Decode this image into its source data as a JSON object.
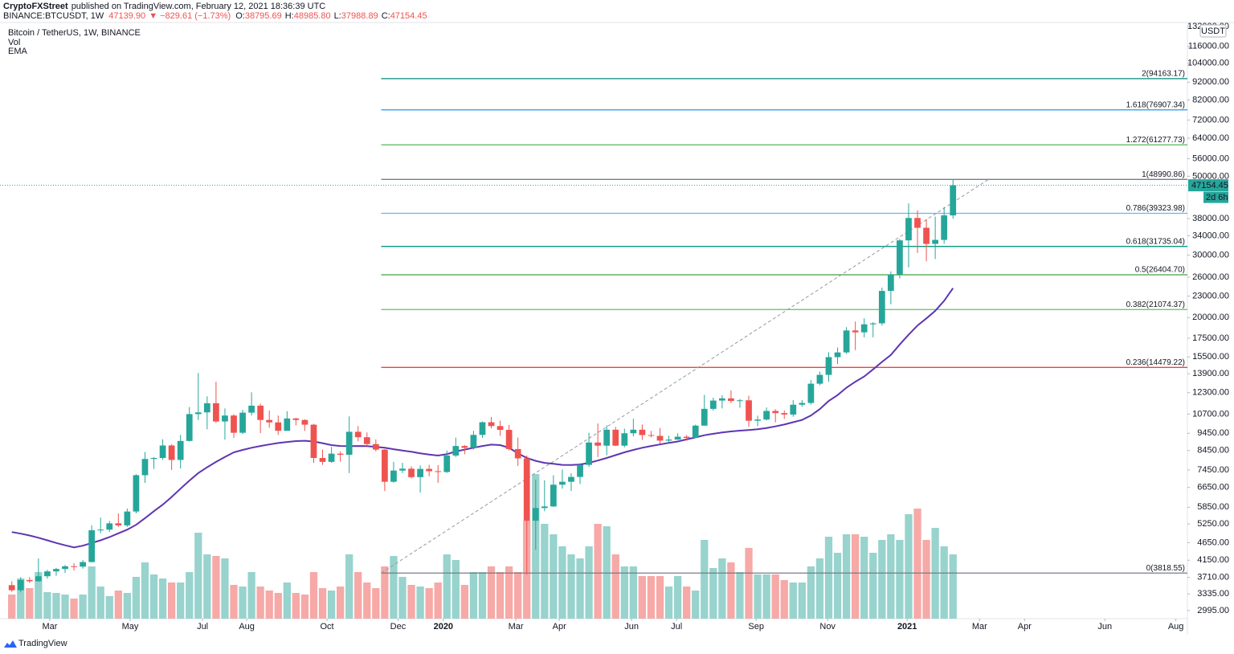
{
  "header": {
    "author": "CryptoFXStreet",
    "published": "published on TradingView.com, February 12, 2021 18:36:39 UTC",
    "symbol": "BINANCE:BTCUSDT, 1W",
    "last": "47139.90",
    "change": "▼ −829.61 (−1.73%)",
    "ohlc": [
      {
        "key": "O:",
        "value": "38795.69"
      },
      {
        "key": "H:",
        "value": "48985.80"
      },
      {
        "key": "L:",
        "value": "37988.89"
      },
      {
        "key": "C:",
        "value": "47154.45"
      }
    ]
  },
  "chart_data": {
    "type": "candlestick",
    "title": "Bitcoin / TetherUS, 1W, BINANCE",
    "indicators": [
      "Vol",
      "EMA"
    ],
    "currency": "USDT",
    "countdown": "2d 6h",
    "log_scale": true,
    "grid": false,
    "up_color": "#26a69a",
    "down_color": "#ef5350",
    "volume_up_color": "#98d3cd",
    "volume_down_color": "#f6a9a7",
    "ema_color": "#5e35b1",
    "categories": [
      null,
      null,
      null,
      null,
      null,
      null,
      null,
      null,
      null,
      null,
      null,
      null,
      null,
      null,
      null,
      null,
      null,
      null,
      null,
      null,
      null,
      null,
      null,
      null,
      null,
      null,
      null,
      null,
      null,
      null,
      null,
      null,
      null,
      null,
      null,
      null,
      null,
      null,
      null,
      null,
      null,
      null,
      null,
      null,
      null,
      null,
      null,
      null,
      null,
      null,
      null,
      null,
      null,
      null,
      null,
      null,
      null,
      null,
      null,
      null,
      null,
      null,
      null,
      null,
      null,
      null,
      null,
      null,
      null,
      null,
      null,
      null,
      null,
      null,
      null,
      null,
      null,
      null,
      null,
      null,
      null,
      null,
      null,
      null,
      null,
      null,
      null,
      null,
      null,
      null,
      null,
      null,
      null,
      null,
      null,
      null,
      null,
      null,
      null,
      null,
      null,
      null,
      null,
      null,
      null,
      null,
      null
    ],
    "open": [
      3530,
      3415,
      3650,
      3620,
      3740,
      3860,
      3920,
      3990,
      3980,
      4100,
      5040,
      5060,
      5270,
      5200,
      5690,
      7200,
      8000,
      8050,
      8730,
      7950,
      8990,
      10700,
      10820,
      11480,
      10200,
      10600,
      9480,
      10800,
      11300,
      10300,
      10140,
      9600,
      10400,
      10300,
      9990,
      8050,
      7850,
      8280,
      8220,
      9540,
      9210,
      8810,
      8500,
      6900,
      7420,
      7510,
      7110,
      7500,
      7390,
      7350,
      8180,
      8700,
      8600,
      9350,
      10150,
      9900,
      9660,
      8530,
      8030,
      5360,
      5820,
      5880,
      6770,
      6900,
      7120,
      7700,
      8900,
      8720,
      9670,
      8720,
      9450,
      9670,
      9340,
      9290,
      9010,
      9070,
      9240,
      9170,
      9930,
      11070,
      11680,
      11850,
      11650,
      11700,
      10250,
      10330,
      10920,
      10770,
      10670,
      11370,
      11500,
      13030,
      13800,
      15480,
      15960,
      18400,
      18180,
      19150,
      19270,
      23780,
      26450,
      33000,
      38150,
      35800,
      32250,
      33100,
      38795.69
    ],
    "high": [
      3620,
      3720,
      3720,
      4200,
      3900,
      3950,
      4020,
      4070,
      4150,
      5200,
      5470,
      5350,
      5620,
      5800,
      7250,
      8370,
      8100,
      9090,
      8800,
      9350,
      11200,
      13970,
      12000,
      13200,
      11100,
      10700,
      11000,
      12320,
      11450,
      10950,
      10600,
      10900,
      10450,
      10350,
      10050,
      8500,
      8650,
      8400,
      10540,
      9900,
      9500,
      9080,
      8530,
      7850,
      7800,
      7630,
      7680,
      7700,
      7690,
      8450,
      9190,
      8760,
      9600,
      10200,
      10500,
      10250,
      9970,
      9190,
      8180,
      7000,
      6970,
      7200,
      7470,
      7290,
      7780,
      9480,
      10070,
      9950,
      9850,
      9740,
      10380,
      10000,
      9590,
      9780,
      9300,
      9450,
      9340,
      9990,
      12120,
      11900,
      12100,
      12480,
      11800,
      12050,
      10590,
      11170,
      11050,
      10950,
      11720,
      11720,
      13350,
      14100,
      15970,
      16480,
      18800,
      19500,
      19900,
      19420,
      24300,
      27000,
      33300,
      41950,
      40100,
      37850,
      38500,
      40950,
      48985.8
    ],
    "low": [
      3380,
      3370,
      3580,
      3610,
      3680,
      3750,
      3820,
      3880,
      3930,
      4090,
      4950,
      4980,
      5150,
      5150,
      5620,
      6850,
      7500,
      7950,
      7450,
      7520,
      8960,
      10300,
      9700,
      10100,
      9070,
      9170,
      9400,
      10600,
      9460,
      9800,
      9350,
      9600,
      9950,
      9600,
      7800,
      7700,
      7800,
      7860,
      7300,
      8970,
      8700,
      8400,
      6500,
      6860,
      7300,
      7050,
      6430,
      7150,
      6850,
      7310,
      8100,
      8250,
      8500,
      9170,
      9750,
      9300,
      8450,
      7650,
      3780,
      4440,
      5700,
      5860,
      6600,
      6500,
      6800,
      7600,
      8100,
      8200,
      8700,
      8630,
      9260,
      9050,
      9200,
      8830,
      8890,
      9050,
      9000,
      9150,
      9920,
      10950,
      11100,
      11500,
      11150,
      9850,
      9900,
      10260,
      10140,
      10370,
      10520,
      11220,
      11380,
      12900,
      13200,
      14800,
      15800,
      16200,
      17600,
      17600,
      19000,
      21800,
      25800,
      27700,
      30400,
      28800,
      29250,
      32300,
      37988.89
    ],
    "close": [
      3415,
      3650,
      3620,
      3740,
      3860,
      3920,
      3990,
      3980,
      4100,
      5040,
      5060,
      5270,
      5200,
      5690,
      7200,
      8000,
      8050,
      8730,
      7950,
      8990,
      10700,
      10820,
      11480,
      10200,
      10600,
      9480,
      10800,
      11300,
      10300,
      10140,
      9600,
      10400,
      10300,
      9990,
      8050,
      7850,
      8280,
      8220,
      9540,
      9210,
      8810,
      8500,
      6900,
      7420,
      7510,
      7110,
      7500,
      7390,
      7350,
      8180,
      8700,
      8600,
      9350,
      10150,
      9900,
      9660,
      8530,
      8030,
      5360,
      5820,
      5880,
      6770,
      6900,
      7120,
      7700,
      8900,
      8720,
      9670,
      8720,
      9450,
      9670,
      9340,
      9290,
      9010,
      9070,
      9240,
      9170,
      9930,
      11070,
      11680,
      11850,
      11650,
      11700,
      10250,
      10330,
      10920,
      10770,
      10670,
      11370,
      11500,
      13030,
      13800,
      15480,
      15960,
      18400,
      18180,
      19150,
      19270,
      23780,
      26450,
      33000,
      38150,
      35800,
      32250,
      33100,
      38800,
      47154.45
    ],
    "volume": [
      30,
      50,
      38,
      58,
      33,
      32,
      30,
      25,
      30,
      65,
      40,
      28,
      35,
      32,
      52,
      70,
      55,
      50,
      45,
      45,
      58,
      107,
      80,
      78,
      75,
      42,
      40,
      58,
      40,
      35,
      32,
      45,
      32,
      30,
      58,
      38,
      35,
      40,
      80,
      58,
      45,
      38,
      65,
      78,
      52,
      42,
      40,
      38,
      45,
      80,
      73,
      42,
      58,
      58,
      65,
      58,
      65,
      58,
      122,
      180,
      118,
      105,
      90,
      80,
      75,
      90,
      118,
      115,
      80,
      65,
      65,
      53,
      53,
      53,
      40,
      53,
      40,
      35,
      98,
      63,
      75,
      70,
      58,
      88,
      55,
      55,
      55,
      48,
      45,
      45,
      65,
      75,
      102,
      82,
      105,
      105,
      102,
      82,
      98,
      105,
      98,
      130,
      137,
      98,
      113,
      90,
      80
    ],
    "ema": [
      4980,
      4930,
      4870,
      4800,
      4720,
      4640,
      4570,
      4510,
      4560,
      4640,
      4720,
      4820,
      4940,
      5060,
      5220,
      5450,
      5700,
      5950,
      6250,
      6600,
      6950,
      7300,
      7580,
      7850,
      8100,
      8350,
      8480,
      8600,
      8700,
      8790,
      8870,
      8930,
      8980,
      9000,
      8960,
      8860,
      8750,
      8700,
      8690,
      8700,
      8690,
      8650,
      8600,
      8520,
      8450,
      8380,
      8300,
      8230,
      8180,
      8250,
      8400,
      8500,
      8600,
      8700,
      8780,
      8750,
      8600,
      8300,
      8050,
      7900,
      7800,
      7750,
      7700,
      7690,
      7720,
      7800,
      7920,
      8050,
      8200,
      8350,
      8480,
      8600,
      8700,
      8790,
      8880,
      8960,
      9080,
      9200,
      9330,
      9420,
      9500,
      9560,
      9610,
      9650,
      9700,
      9780,
      9880,
      10000,
      10150,
      10300,
      10600,
      11050,
      11650,
      12100,
      12700,
      13200,
      13650,
      14300,
      15000,
      15700,
      16800,
      17900,
      19000,
      19900,
      20900,
      22300,
      24200
    ],
    "xlim": [
      -1.33,
      132.4
    ],
    "xticks": [
      {
        "value": 4.28,
        "label": "Mar"
      },
      {
        "value": 13.33,
        "label": "May"
      },
      {
        "value": 21.48,
        "label": "Jul"
      },
      {
        "value": 26.46,
        "label": "Aug"
      },
      {
        "value": 35.5,
        "label": "Oct"
      },
      {
        "value": 43.5,
        "label": "Dec"
      },
      {
        "value": 48.6,
        "label": "2020"
      },
      {
        "value": 56.77,
        "label": "Mar"
      },
      {
        "value": 61.66,
        "label": "Apr"
      },
      {
        "value": 69.8,
        "label": "Jun"
      },
      {
        "value": 74.87,
        "label": "Jul"
      },
      {
        "value": 83.83,
        "label": "Sep"
      },
      {
        "value": 91.88,
        "label": "Nov"
      },
      {
        "value": 100.84,
        "label": "2021"
      },
      {
        "value": 109.0,
        "label": "Mar"
      },
      {
        "value": 114.06,
        "label": "Apr"
      },
      {
        "value": 123.1,
        "label": "Jun"
      },
      {
        "value": 131.1,
        "label": "Aug"
      }
    ],
    "ylim": [
      2841,
      134080
    ],
    "yticks": [
      {
        "value": 132000,
        "label": "132000.00"
      },
      {
        "value": 116000,
        "label": "116000.00"
      },
      {
        "value": 104000,
        "label": "104000.00"
      },
      {
        "value": 92000,
        "label": "92000.00"
      },
      {
        "value": 82000,
        "label": "82000.00"
      },
      {
        "value": 72000,
        "label": "72000.00"
      },
      {
        "value": 64000,
        "label": "64000.00"
      },
      {
        "value": 56000,
        "label": "56000.00"
      },
      {
        "value": 50000,
        "label": "50000.00"
      },
      {
        "value": 38000,
        "label": "38000.00"
      },
      {
        "value": 34000,
        "label": "34000.00"
      },
      {
        "value": 30000,
        "label": "30000.00"
      },
      {
        "value": 26000,
        "label": "26000.00"
      },
      {
        "value": 23000,
        "label": "23000.00"
      },
      {
        "value": 20000,
        "label": "20000.00"
      },
      {
        "value": 17500,
        "label": "17500.00"
      },
      {
        "value": 15500,
        "label": "15500.00"
      },
      {
        "value": 13900,
        "label": "13900.00"
      },
      {
        "value": 12300,
        "label": "12300.00"
      },
      {
        "value": 10700,
        "label": "10700.00"
      },
      {
        "value": 9450,
        "label": "9450.00"
      },
      {
        "value": 8450,
        "label": "8450.00"
      },
      {
        "value": 7450,
        "label": "7450.00"
      },
      {
        "value": 6650,
        "label": "6650.00"
      },
      {
        "value": 5850,
        "label": "5850.00"
      },
      {
        "value": 5250,
        "label": "5250.00"
      },
      {
        "value": 4650,
        "label": "4650.00"
      },
      {
        "value": 4150,
        "label": "4150.00"
      },
      {
        "value": 3710,
        "label": "3710.00"
      },
      {
        "value": 3335,
        "label": "3335.00"
      },
      {
        "value": 2995,
        "label": "2995.00"
      }
    ],
    "fib_x": [
      41.6,
      110.0
    ],
    "fib": [
      {
        "value": 94163.17,
        "label": "2(94163.17)",
        "color": "#00897b"
      },
      {
        "value": 76907.34,
        "label": "1.618(76907.34)",
        "color": "#2196f3"
      },
      {
        "value": 61277.73,
        "label": "1.272(61277.73)",
        "color": "#66bb6a"
      },
      {
        "value": 48990.86,
        "label": "1(48990.86)",
        "color": "#787b86"
      },
      {
        "value": 39323.98,
        "label": "0.786(39323.98)",
        "color": "#64b5f6"
      },
      {
        "value": 31735.04,
        "label": "0.618(31735.04)",
        "color": "#089981"
      },
      {
        "value": 26404.7,
        "label": "0.5(26404.70)",
        "color": "#43a047"
      },
      {
        "value": 21074.37,
        "label": "0.382(21074.37)",
        "color": "#66bb6a"
      },
      {
        "value": 14479.22,
        "label": "0.236(14479.22)",
        "color": "#f44336"
      },
      {
        "value": 3818.55,
        "label": "0(3818.55)",
        "color": "#787b86"
      }
    ]
  },
  "footer": {
    "brand": "TradingView"
  }
}
